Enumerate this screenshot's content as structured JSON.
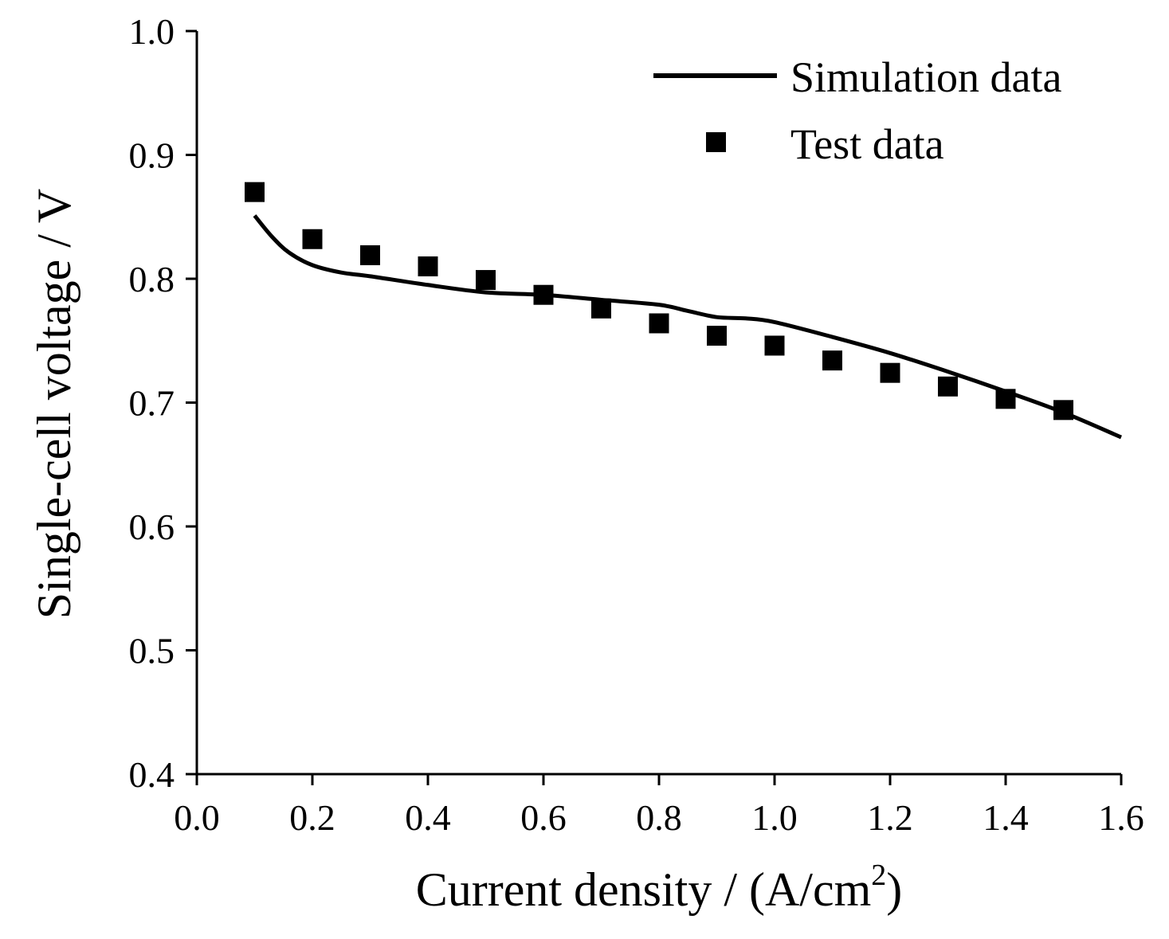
{
  "chart_data": {
    "type": "line",
    "title": "",
    "xlabel": "Current density / (A/cm",
    "xlabel_superscript": "2",
    "xlabel_suffix": ")",
    "ylabel": "Single-cell voltage / V",
    "xlim": [
      0.0,
      1.6
    ],
    "ylim": [
      0.4,
      1.0
    ],
    "xticks": [
      0.0,
      0.2,
      0.4,
      0.6,
      0.8,
      1.0,
      1.2,
      1.4,
      1.6
    ],
    "xtick_labels": [
      "0.0",
      "0.2",
      "0.4",
      "0.6",
      "0.8",
      "1.0",
      "1.2",
      "1.4",
      "1.6"
    ],
    "yticks": [
      0.4,
      0.5,
      0.6,
      0.7,
      0.8,
      0.9,
      1.0
    ],
    "ytick_labels": [
      "0.4",
      "0.5",
      "0.6",
      "0.7",
      "0.8",
      "0.9",
      "1.0"
    ],
    "grid": false,
    "legend_position": "top-right",
    "series": [
      {
        "name": "Simulation data",
        "style": "line",
        "color": "#000000",
        "x": [
          0.1,
          0.13,
          0.16,
          0.2,
          0.25,
          0.3,
          0.4,
          0.5,
          0.6,
          0.7,
          0.8,
          0.85,
          0.9,
          0.95,
          1.0,
          1.1,
          1.2,
          1.3,
          1.4,
          1.5,
          1.6
        ],
        "y": [
          0.851,
          0.834,
          0.821,
          0.811,
          0.805,
          0.802,
          0.795,
          0.789,
          0.787,
          0.783,
          0.779,
          0.774,
          0.769,
          0.768,
          0.765,
          0.753,
          0.74,
          0.725,
          0.709,
          0.692,
          0.672
        ]
      },
      {
        "name": "Test data",
        "style": "square-markers",
        "color": "#000000",
        "x": [
          0.1,
          0.2,
          0.3,
          0.4,
          0.5,
          0.6,
          0.7,
          0.8,
          0.9,
          1.0,
          1.1,
          1.2,
          1.3,
          1.4,
          1.5
        ],
        "y": [
          0.87,
          0.832,
          0.819,
          0.81,
          0.799,
          0.787,
          0.776,
          0.764,
          0.754,
          0.746,
          0.734,
          0.724,
          0.713,
          0.703,
          0.694
        ]
      }
    ]
  }
}
